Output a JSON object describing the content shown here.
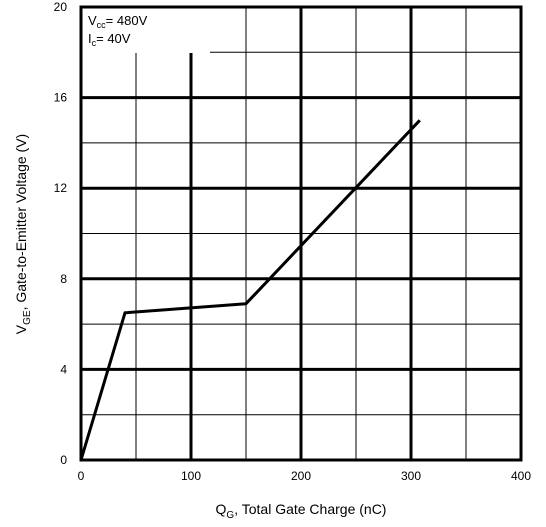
{
  "chart_data": {
    "type": "line",
    "xlabel": {
      "main": "Q",
      "sub": "G",
      "rest": ", Total Gate Charge (nC)"
    },
    "ylabel": {
      "main": "V",
      "sub": "GE",
      "rest": ", Gate-to-Emitter Voltage (V)"
    },
    "xlim": [
      0,
      400
    ],
    "ylim": [
      0,
      20
    ],
    "x_ticks": [
      0,
      100,
      200,
      300,
      400
    ],
    "y_ticks": [
      0,
      4,
      8,
      12,
      16,
      20
    ],
    "x_tick_labels": [
      "0",
      "100",
      "200",
      "300",
      "400"
    ],
    "y_tick_labels": [
      "0",
      "4",
      "8",
      "12",
      "16",
      "20"
    ],
    "x_minor_step": 50,
    "y_minor_step": 2,
    "grid": true,
    "series": [
      {
        "x": [
          0,
          40,
          150,
          308
        ],
        "y": [
          0,
          6.5,
          6.9,
          15.0
        ],
        "color": "#000000"
      }
    ],
    "annotations": [
      {
        "main": "V",
        "sub": "cc",
        "rest": "= 480V"
      },
      {
        "main": "I",
        "sub": "c",
        "rest": "= 40V"
      }
    ]
  }
}
